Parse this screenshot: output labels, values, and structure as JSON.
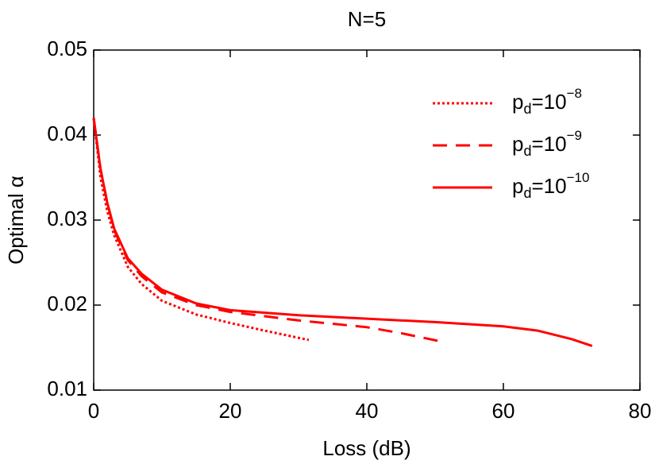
{
  "chart_data": {
    "type": "line",
    "title": "N=5",
    "x_label": "Loss (dB)",
    "y_label": "Optimal α",
    "xlim": [
      0,
      80
    ],
    "xticks": [
      0,
      20,
      40,
      60,
      80
    ],
    "ylim": [
      0.01,
      0.05
    ],
    "yticks": [
      0.01,
      0.02,
      0.03,
      0.04,
      0.05
    ],
    "legend": "upper right",
    "series": [
      {
        "name": "pd=10−8",
        "color": "#ff0000",
        "style": "dotted",
        "x": [
          0,
          1,
          2,
          3,
          5,
          7,
          10,
          15,
          20,
          25,
          31.5
        ],
        "values": [
          0.042,
          0.035,
          0.031,
          0.0282,
          0.0245,
          0.0225,
          0.0205,
          0.0189,
          0.0179,
          0.017,
          0.0159
        ]
      },
      {
        "name": "pd=10−9",
        "color": "#ff0000",
        "style": "dashed",
        "x": [
          0,
          1,
          2,
          3,
          5,
          7,
          10,
          15,
          20,
          30,
          40,
          45,
          51
        ],
        "values": [
          0.042,
          0.036,
          0.032,
          0.0288,
          0.0253,
          0.0234,
          0.0215,
          0.02,
          0.0192,
          0.0182,
          0.0174,
          0.0167,
          0.0157
        ]
      },
      {
        "name": "pd=10−10",
        "color": "#ff0000",
        "style": "solid",
        "x": [
          0,
          1,
          2,
          3,
          5,
          7,
          10,
          15,
          20,
          30,
          40,
          50,
          60,
          65,
          70,
          73
        ],
        "values": [
          0.042,
          0.036,
          0.032,
          0.029,
          0.0255,
          0.0237,
          0.0218,
          0.0202,
          0.0194,
          0.0188,
          0.0184,
          0.018,
          0.0175,
          0.017,
          0.016,
          0.0152
        ]
      }
    ]
  }
}
